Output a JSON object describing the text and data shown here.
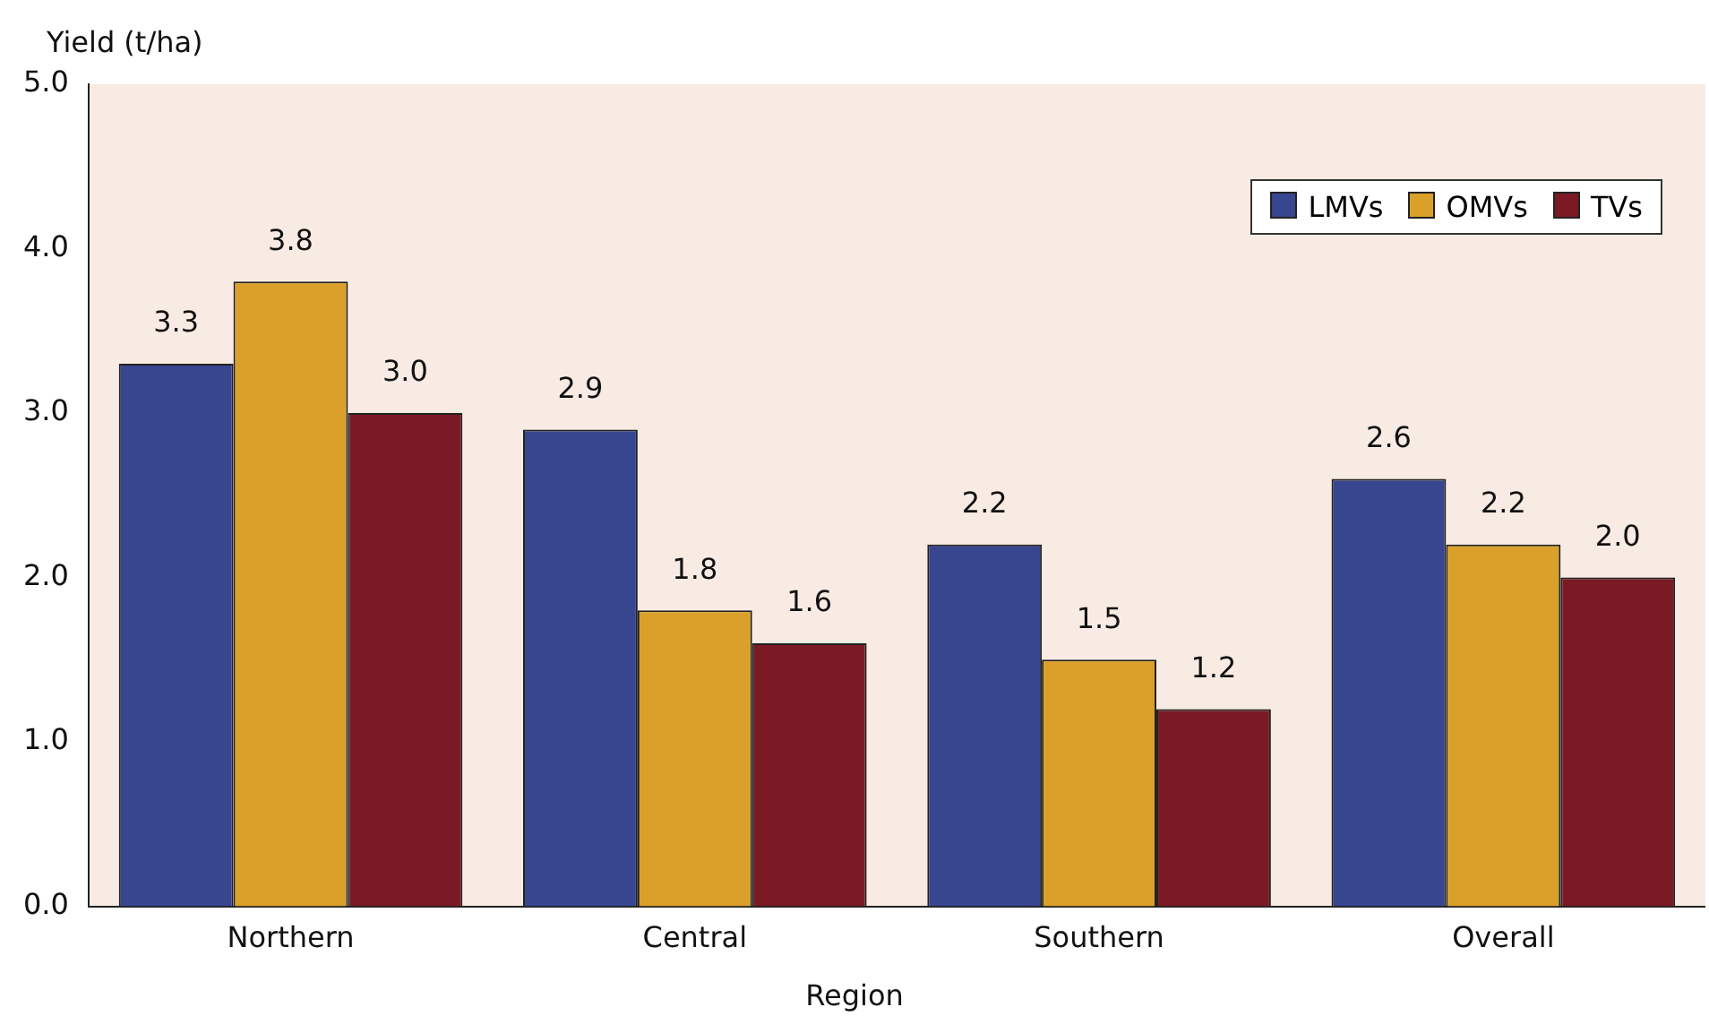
{
  "chart_data": {
    "type": "bar",
    "ylabel": "Yield (t/ha)",
    "xlabel": "Region",
    "categories": [
      "Northern",
      "Central",
      "Southern",
      "Overall"
    ],
    "series": [
      {
        "name": "LMVs",
        "color": "#38458f",
        "values": [
          3.3,
          2.9,
          2.2,
          2.6
        ],
        "value_labels": [
          "3.3",
          "2.9",
          "2.2",
          "2.6"
        ]
      },
      {
        "name": "OMVs",
        "color": "#daa02a",
        "values": [
          3.8,
          1.8,
          1.5,
          2.2
        ],
        "value_labels": [
          "3.8",
          "1.8",
          "1.5",
          "2.2"
        ]
      },
      {
        "name": "TVs",
        "color": "#7b1a25",
        "values": [
          3.0,
          1.6,
          1.2,
          2.0
        ],
        "value_labels": [
          "3.0",
          "1.6",
          "1.2",
          "2.0"
        ]
      }
    ],
    "ylim": [
      0,
      5
    ],
    "yticks": [
      {
        "value": 0,
        "label": "0.0"
      },
      {
        "value": 1,
        "label": "1.0"
      },
      {
        "value": 2,
        "label": "2.0"
      },
      {
        "value": 3,
        "label": "3.0"
      },
      {
        "value": 4,
        "label": "4.0"
      },
      {
        "value": 5,
        "label": "5.0"
      }
    ],
    "legend": "top right",
    "grid": false
  }
}
